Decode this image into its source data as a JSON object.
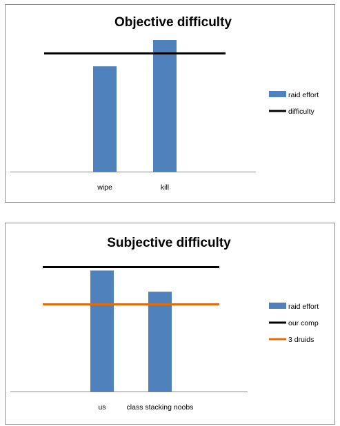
{
  "chart_data": [
    {
      "type": "bar",
      "title": "Objective difficulty",
      "xlabel": "",
      "ylabel": "",
      "categories": [
        "wipe",
        "kill"
      ],
      "ylim": [
        0,
        100
      ],
      "grid": false,
      "legend_position": "right",
      "series": [
        {
          "name": "raid effort",
          "kind": "bar",
          "color": "#4f81bd",
          "values": [
            80,
            100
          ]
        },
        {
          "name": "difficulty",
          "kind": "line",
          "color": "#000000",
          "value": 90
        }
      ]
    },
    {
      "type": "bar",
      "title": "Subjective difficulty",
      "xlabel": "",
      "ylabel": "",
      "categories": [
        "us",
        "class stacking noobs"
      ],
      "ylim": [
        0,
        100
      ],
      "grid": false,
      "legend_position": "right",
      "series": [
        {
          "name": "raid effort",
          "kind": "bar",
          "color": "#4f81bd",
          "values": [
            97,
            80
          ]
        },
        {
          "name": "our comp",
          "kind": "line",
          "color": "#000000",
          "value": 100
        },
        {
          "name": "3 druids",
          "kind": "line",
          "color": "#e36c09",
          "value": 70
        }
      ]
    }
  ]
}
